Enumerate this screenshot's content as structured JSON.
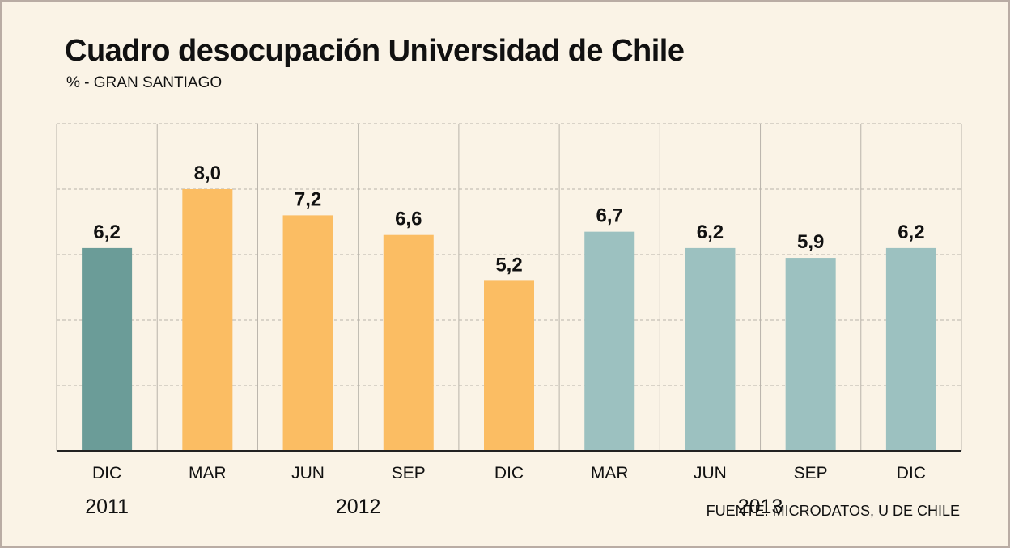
{
  "header": {
    "title": "Cuadro desocupación Universidad de Chile",
    "subtitle": "% - GRAN SANTIAGO"
  },
  "footer": {
    "source": "FUENTE: MICRODATOS, U DE CHILE"
  },
  "colors": {
    "bar_2011": "#6b9c98",
    "bar_2012": "#fbbd63",
    "bar_2013": "#9cc1c0",
    "background": "#faf3e6",
    "grid": "#b8b3aa"
  },
  "chart_data": {
    "type": "bar",
    "categories": [
      "DIC",
      "MAR",
      "JUN",
      "SEP",
      "DIC",
      "MAR",
      "JUN",
      "SEP",
      "DIC"
    ],
    "values": [
      6.2,
      8.0,
      7.2,
      6.6,
      5.2,
      6.7,
      6.2,
      5.9,
      6.2
    ],
    "value_labels": [
      "6,2",
      "8,0",
      "7,2",
      "6,6",
      "5,2",
      "6,7",
      "6,2",
      "5,9",
      "6,2"
    ],
    "groups": [
      {
        "label": "2011",
        "start": 0,
        "end": 0
      },
      {
        "label": "2012",
        "start": 1,
        "end": 4
      },
      {
        "label": "2013",
        "start": 5,
        "end": 8
      }
    ],
    "group_colors": [
      "#6b9c98",
      "#fbbd63",
      "#fbbd63",
      "#fbbd63",
      "#fbbd63",
      "#9cc1c0",
      "#9cc1c0",
      "#9cc1c0",
      "#9cc1c0"
    ],
    "ylim": [
      0,
      10
    ],
    "y_grid_step": 2,
    "grid": true,
    "title": "Cuadro desocupación Universidad de Chile",
    "xlabel": "",
    "ylabel": ""
  }
}
